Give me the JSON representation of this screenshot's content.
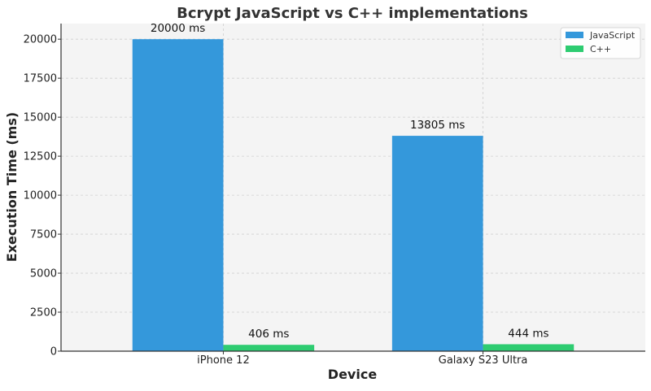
{
  "chart_data": {
    "type": "bar",
    "title": "Bcrypt JavaScript vs C++ implementations",
    "xlabel": "Device",
    "ylabel": "Execution Time (ms)",
    "categories": [
      "iPhone 12",
      "Galaxy S23 Ultra"
    ],
    "series": [
      {
        "name": "JavaScript",
        "values": [
          20000,
          13805
        ],
        "labels": [
          "20000 ms",
          "13805 ms"
        ],
        "color": "#3498db"
      },
      {
        "name": "C++",
        "values": [
          406,
          444
        ],
        "labels": [
          "406 ms",
          "444 ms"
        ],
        "color": "#2ecc71"
      }
    ],
    "ylim": [
      0,
      21000
    ],
    "yticks": [
      0,
      2500,
      5000,
      7500,
      10000,
      12500,
      15000,
      17500,
      20000
    ],
    "grid": true,
    "legend_position": "top-right",
    "background_color": "#f4f4f4"
  }
}
